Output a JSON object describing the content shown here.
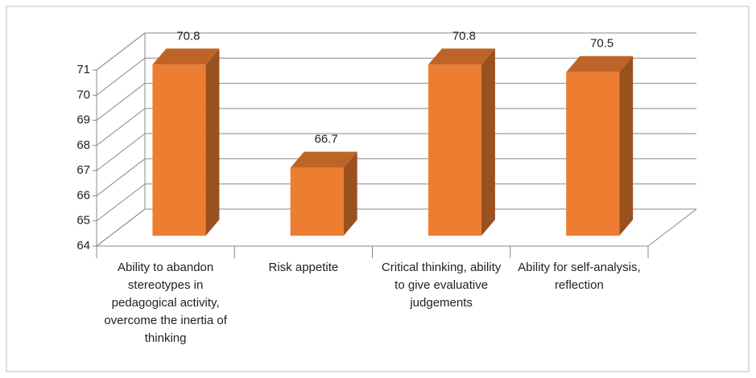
{
  "chart_data": {
    "type": "bar3d",
    "categories": [
      "Ability to abandon stereotypes in pedagogical activity, overcome the inertia of thinking",
      "Risk appetite",
      "Critical thinking, ability to give evaluative judgements",
      "Ability for self-analysis, reflection"
    ],
    "values": [
      70.8,
      66.7,
      70.8,
      70.5
    ],
    "color": "#ed7d31",
    "ylim": [
      64,
      71
    ],
    "yticks": [
      64,
      65,
      66,
      67,
      68,
      69,
      70,
      71
    ],
    "grid": true
  }
}
